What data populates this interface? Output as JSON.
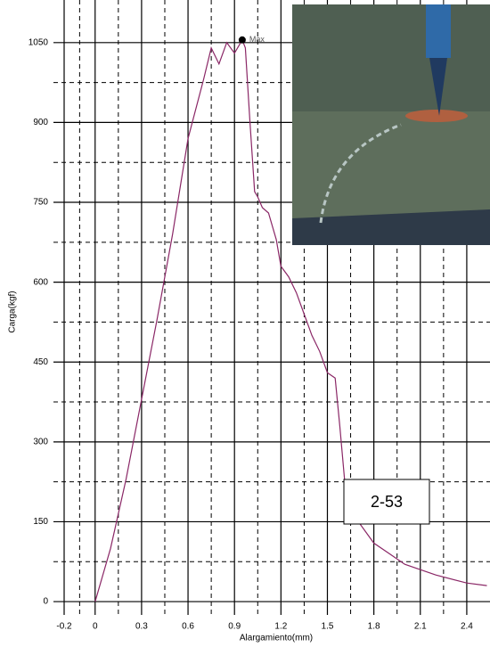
{
  "chart_data": {
    "type": "line",
    "x_label": "Alargamiento(mm)",
    "y_label": "Carga(kgf)",
    "xlim": [
      -0.2,
      2.55
    ],
    "ylim": [
      -25,
      1130
    ],
    "xticks": [
      -0.2,
      0,
      0.3,
      0.6,
      0.9,
      1.2,
      1.5,
      1.8,
      2.1,
      2.4
    ],
    "yticks": [
      0,
      150,
      300,
      450,
      600,
      750,
      900,
      1050
    ],
    "grid": true,
    "x": [
      0,
      0.1,
      0.2,
      0.3,
      0.4,
      0.5,
      0.6,
      0.7,
      0.75,
      0.8,
      0.85,
      0.9,
      0.95,
      0.97,
      1.0,
      1.03,
      1.05,
      1.08,
      1.12,
      1.17,
      1.2,
      1.25,
      1.3,
      1.35,
      1.4,
      1.45,
      1.5,
      1.55,
      1.58,
      1.62,
      1.7,
      1.8,
      1.9,
      2.0,
      2.2,
      2.4,
      2.53
    ],
    "series": [
      {
        "color": "#8a2766",
        "values": [
          0,
          100,
          230,
          380,
          530,
          690,
          870,
          980,
          1040,
          1010,
          1050,
          1030,
          1055,
          1040,
          900,
          770,
          760,
          740,
          730,
          680,
          630,
          610,
          580,
          540,
          500,
          470,
          430,
          420,
          330,
          200,
          150,
          110,
          90,
          70,
          50,
          35,
          30
        ]
      }
    ],
    "max_point": {
      "x": 0.95,
      "y": 1055,
      "label": "Max"
    },
    "annotation": "2-53"
  }
}
